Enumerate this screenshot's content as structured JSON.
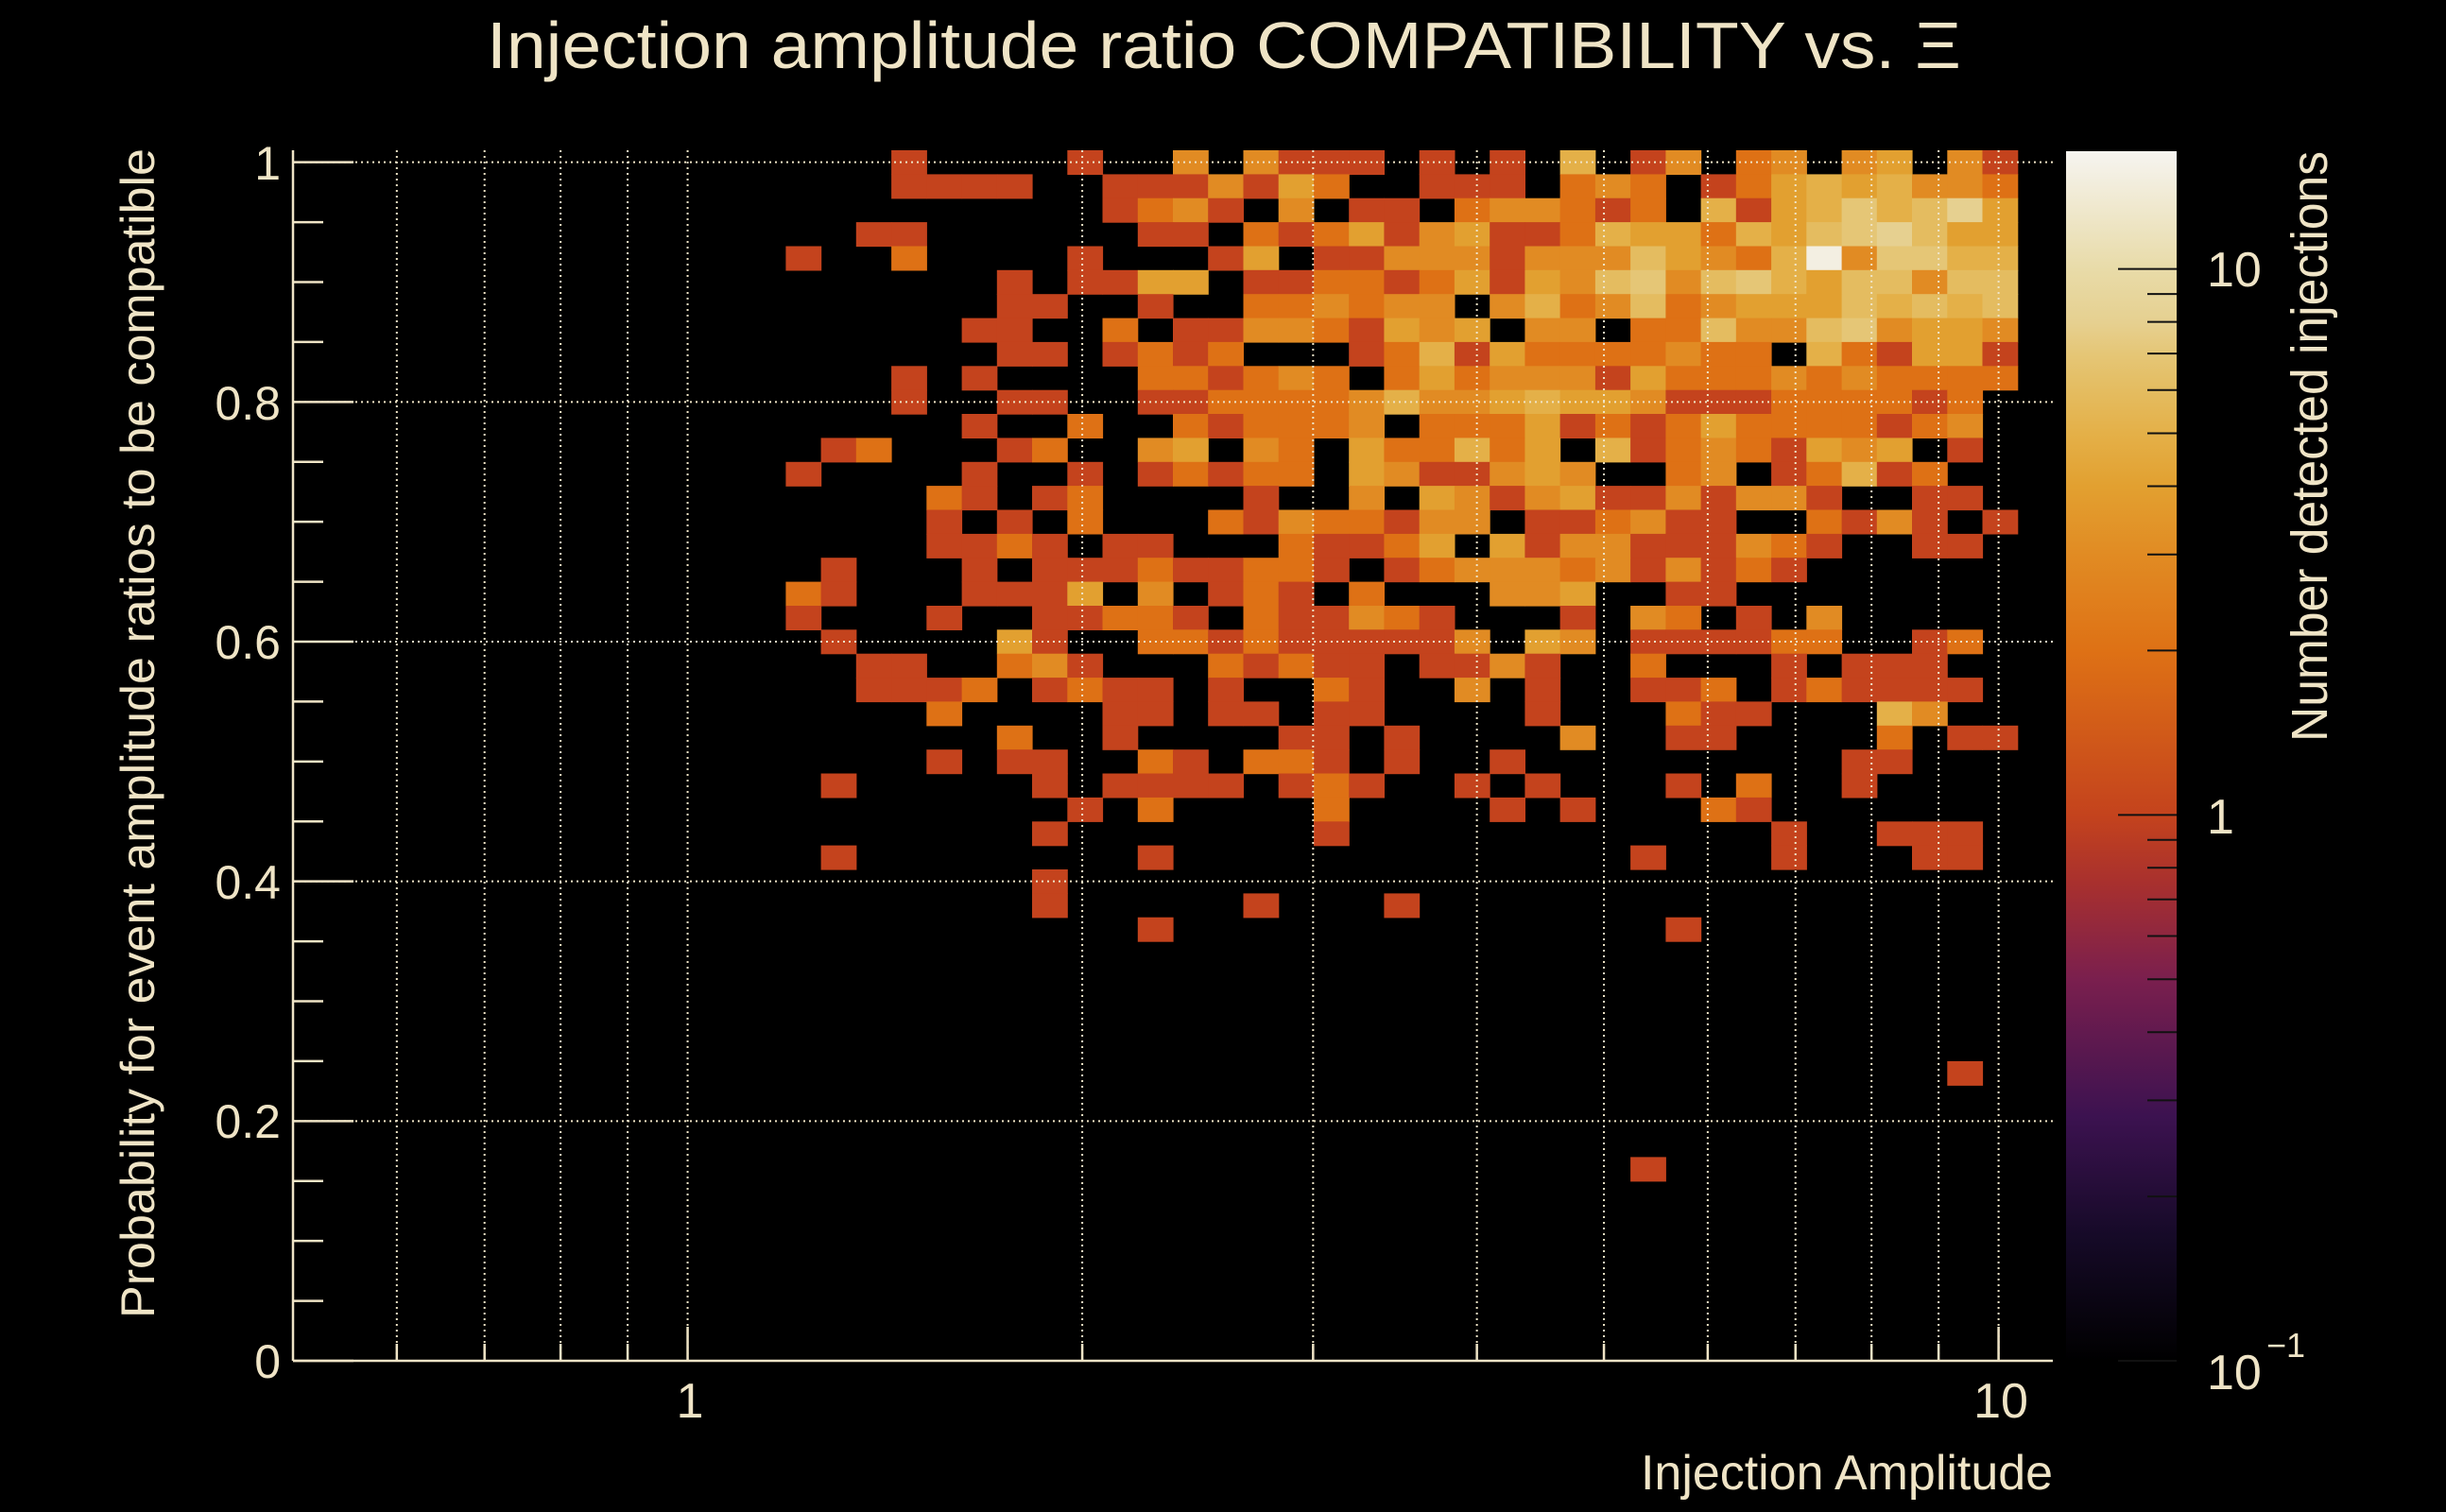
{
  "chart_data": {
    "type": "heatmap",
    "title": "Injection amplitude ratio COMPATIBILITY vs.  Ξ",
    "xlabel": "Injection Amplitude",
    "ylabel": "Probability for event amplitude ratios to be compatible",
    "zlabel": "Number detected injections",
    "x_scale": "log",
    "xlim": [
      0.5,
      11
    ],
    "ylim": [
      0,
      1.01
    ],
    "z_scale": "log",
    "zlim": [
      0.1,
      16.5
    ],
    "nbins_x": 50,
    "y_bin_width": 0.02,
    "y_first_bin_center": 1.0,
    "grid": true,
    "x_ticks": [
      {
        "value": 1,
        "label": "1"
      },
      {
        "value": 10,
        "label": "10"
      }
    ],
    "x_minor_ticks": [
      0.6,
      0.7,
      0.8,
      0.9,
      2,
      3,
      4,
      5,
      6,
      7,
      8,
      9
    ],
    "y_ticks": [
      {
        "value": 0,
        "label": "0"
      },
      {
        "value": 0.2,
        "label": "0.2"
      },
      {
        "value": 0.4,
        "label": "0.4"
      },
      {
        "value": 0.6,
        "label": "0.6"
      },
      {
        "value": 0.8,
        "label": "0.8"
      },
      {
        "value": 1,
        "label": "1"
      }
    ],
    "z_ticks": [
      {
        "value": 10,
        "label": "10",
        "sup": ""
      },
      {
        "value": 1,
        "label": "1",
        "sup": ""
      },
      {
        "value": 0.1,
        "label": "10",
        "sup": "−1"
      }
    ],
    "count_encoding": "one character per x-bin (left to right); digits = counts, f = 15",
    "rows_top_to_bottom": [
      "00000000000000000100001003031110101050130230340310",
      "00000000000000000111100111314200111023201245453320",
      "00000000000000000000000123103011023321205145756840",
      "00000000000000001100000011021241341125442546786440",
      "0000000000000010020000100014011333133364325f377550",
      "00000000000000000000101144011221241436736754663660",
      "00000000000000000000110010022323303523623444656560",
      "00000000000000000001100201133214340330226336734430",
      "00000000000000000000110121200012514222232205214410",
      "00000000000000000101000022123202423331422232322220",
      "00000000000000000100110011222235334544311122221200",
      "00000000000000000001002002122230222412124222212300",
      "00000000000000012000120034032042252405123214340100",
      "00000000000000100001001012122043113430023012512000",
      "00000000000000000021012000010030431341131331001100",
      "00000000000000000010102000213221330112311002131010",
      "00000000000000000011210110002112404133111321001100",
      "00000000000000010001011121122101233323131210000000",
      "00000000000000210001114030121020003340011000000000",
      "00000000000000100010011221021132100010320103000000",
      "00000000000000010000410022121111130430111122001200",
      "00000000000000001100231000212110113100200010111000",
      "00000000000000001112012110100210030100112012111100",
      "00000000000000000020000110110110000100021100053000",
      "00000000000000000000200100001101000030011000020110",
      "00000000000000000010110021022101001000000000110000",
      "00000000000000010000010111101210010100010200100000",
      "00000000000000000000001020000200001010002100000000",
      "00000000000000000000010000000100000000000010011100",
      "00000000000000010000000010000000000000100010001100",
      "00000000000000000000010000000000000000000000000000",
      "00000000000000000000010000010001000000000000000000",
      "00000000000000000000000010000000000000010000000000",
      "00000000000000000000000000000000000000000000000000",
      "00000000000000000000000000000000000000000000000000",
      "00000000000000000000000000000000000000000000000000",
      "00000000000000000000000000000000000000000000000000",
      "00000000000000000000000000000000000000000000000000",
      "00000000000000000000000000000000000000000000000100",
      "00000000000000000000000000000000000000000000000000",
      "00000000000000000000000000000000000000000000000000",
      "00000000000000000000000000000000000000000000000000",
      "00000000000000000000000000000000000000100000000000",
      "00000000000000000000000000000000000000000000000000",
      "00000000000000000000000000000000000000000000000000",
      "00000000000000000000000000000000000000000000000000",
      "00000000000000000000000000000000000000000000000000",
      "00000000000000000000000000000000000000000000000000",
      "00000000000000000000000000000000000000000000000000",
      "00000000000000000000000000000000000000000000000000",
      "00000000000000000000000000000000000000000000000000"
    ],
    "colormap": [
      [
        0.1,
        "#000000"
      ],
      [
        0.17,
        "#160a28"
      ],
      [
        0.28,
        "#3c1250"
      ],
      [
        0.5,
        "#7a1f4e"
      ],
      [
        0.75,
        "#a8302e"
      ],
      [
        1,
        "#c4431d"
      ],
      [
        2,
        "#de7115"
      ],
      [
        3,
        "#e18b23"
      ],
      [
        4,
        "#e2a030"
      ],
      [
        5,
        "#e4b048"
      ],
      [
        6,
        "#e4bc60"
      ],
      [
        7,
        "#e5c676"
      ],
      [
        8,
        "#e6d090"
      ],
      [
        10,
        "#e8dba8"
      ],
      [
        16.5,
        "#f6f4f0"
      ]
    ]
  }
}
